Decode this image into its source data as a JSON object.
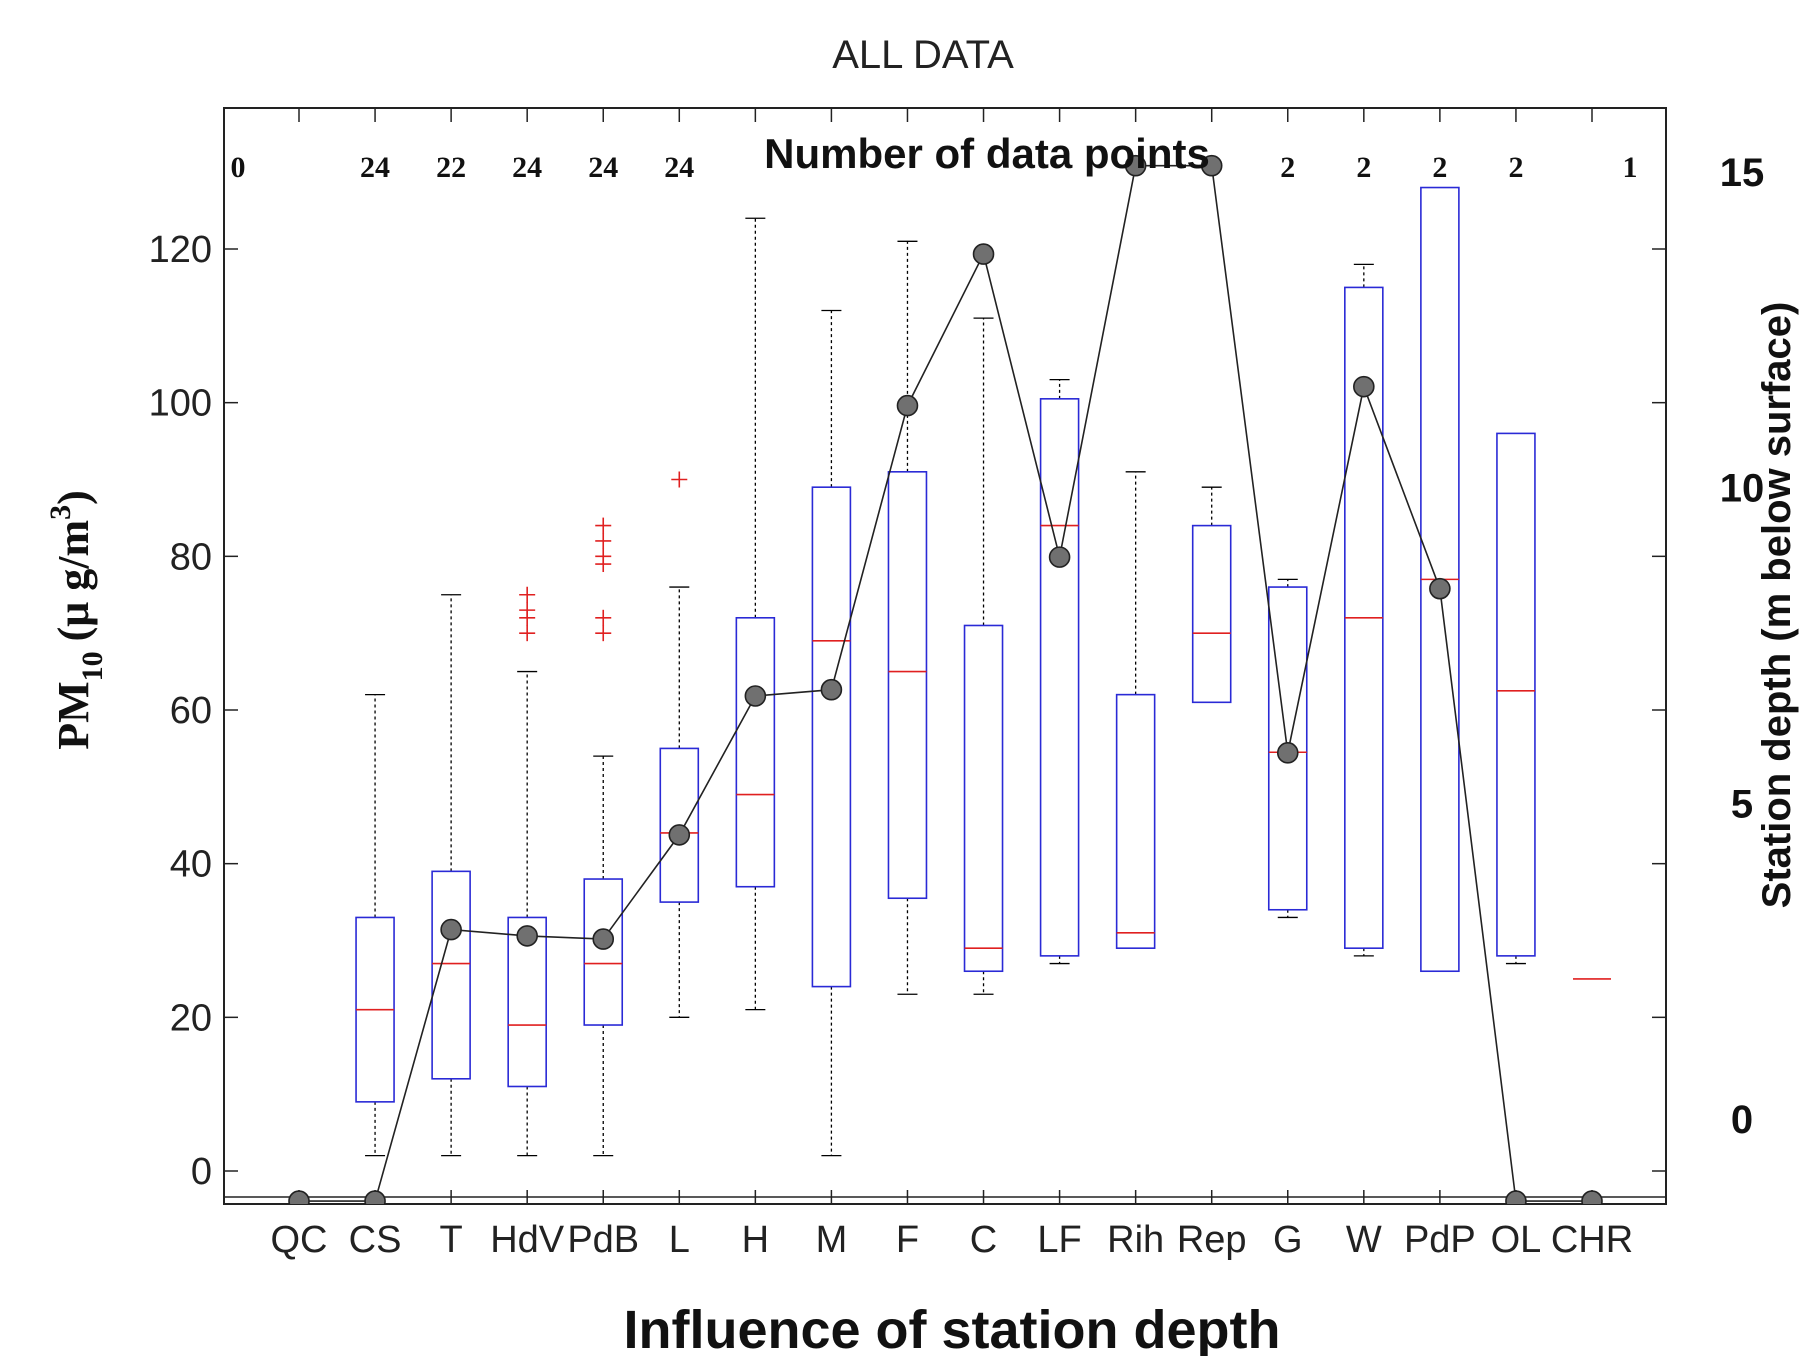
{
  "chart_data": {
    "type": "box",
    "title": "ALL DATA",
    "xlabel": "Influence of station depth",
    "ylabel_main": "PM",
    "ylabel_sub": "10",
    "ylabel_unit": "(μ g/m",
    "ylabel_sup": "3",
    "ylabel_close": ")",
    "y2label": "Station depth (m below surface)",
    "annotation": "Number of data points",
    "ylim": [
      -3.5,
      138
    ],
    "y2lim": [
      -1.3,
      16
    ],
    "yticks": [
      0,
      20,
      40,
      60,
      80,
      100,
      120
    ],
    "y2ticks": [
      0,
      5,
      10,
      15
    ],
    "categories": [
      "QC",
      "CS",
      "T",
      "HdV",
      "PdB",
      "L",
      "H",
      "M",
      "F",
      "C",
      "LF",
      "Rih",
      "Rep",
      "G",
      "W",
      "PdP",
      "OL",
      "CHR"
    ],
    "counts": [
      "0",
      "24",
      "22",
      "24",
      "24",
      "24",
      "",
      "",
      "",
      "",
      "",
      "",
      "",
      "2",
      "2",
      "2",
      "2",
      "1"
    ],
    "boxes": [
      null,
      {
        "q1": 9,
        "median": 21,
        "q3": 33,
        "whisker_low": 2,
        "whisker_high": 62,
        "outliers": []
      },
      {
        "q1": 12,
        "median": 27,
        "q3": 39,
        "whisker_low": 2,
        "whisker_high": 75,
        "outliers": []
      },
      {
        "q1": 11,
        "median": 19,
        "q3": 33,
        "whisker_low": 2,
        "whisker_high": 65,
        "outliers": [
          70,
          72,
          73,
          75
        ]
      },
      {
        "q1": 19,
        "median": 27,
        "q3": 38,
        "whisker_low": 2,
        "whisker_high": 54,
        "outliers": [
          70,
          72,
          79,
          80,
          82,
          84
        ]
      },
      {
        "q1": 35,
        "median": 44,
        "q3": 55,
        "whisker_low": 20,
        "whisker_high": 76,
        "outliers": [
          90
        ]
      },
      {
        "q1": 37,
        "median": 49,
        "q3": 72,
        "whisker_low": 21,
        "whisker_high": 124,
        "outliers": []
      },
      {
        "q1": 24,
        "median": 69,
        "q3": 89,
        "whisker_low": 2,
        "whisker_high": 112,
        "outliers": []
      },
      {
        "q1": 35.5,
        "median": 65,
        "q3": 91,
        "whisker_low": 23,
        "whisker_high": 121,
        "outliers": []
      },
      {
        "q1": 26,
        "median": 29,
        "q3": 71,
        "whisker_low": 23,
        "whisker_high": 111,
        "outliers": []
      },
      {
        "q1": 28,
        "median": 84,
        "q3": 100.5,
        "whisker_low": 27,
        "whisker_high": 103,
        "outliers": []
      },
      {
        "q1": 29,
        "median": 31,
        "q3": 62,
        "whisker_low": 29,
        "whisker_high": 91,
        "outliers": []
      },
      {
        "q1": 61,
        "median": 70,
        "q3": 84,
        "whisker_low": 61,
        "whisker_high": 89,
        "outliers": []
      },
      {
        "q1": 34,
        "median": 54.5,
        "q3": 76,
        "whisker_low": 33,
        "whisker_high": 77,
        "outliers": []
      },
      {
        "q1": 29,
        "median": 72,
        "q3": 115,
        "whisker_low": 28,
        "whisker_high": 118,
        "outliers": []
      },
      {
        "q1": 26,
        "median": 77,
        "q3": 128,
        "whisker_low": 26,
        "whisker_high": 128,
        "outliers": []
      },
      {
        "q1": 28,
        "median": 62.5,
        "q3": 96,
        "whisker_low": 27,
        "whisker_high": 96,
        "outliers": []
      },
      {
        "q1": 25,
        "median": 25,
        "q3": 25,
        "whisker_low": 25,
        "whisker_high": 25,
        "outliers": []
      }
    ],
    "depth_series": [
      -1.3,
      -1.3,
      3.0,
      2.9,
      2.85,
      4.5,
      6.7,
      6.8,
      11.3,
      13.7,
      8.9,
      15.1,
      15.1,
      5.8,
      11.6,
      8.4,
      -1.3,
      -1.3
    ],
    "colors": {
      "box": "#2a2ad6",
      "median": "#e02020",
      "outlier": "#e02020",
      "whisker": "#000000",
      "depth_line": "#222222",
      "depth_marker": "#707070"
    }
  }
}
